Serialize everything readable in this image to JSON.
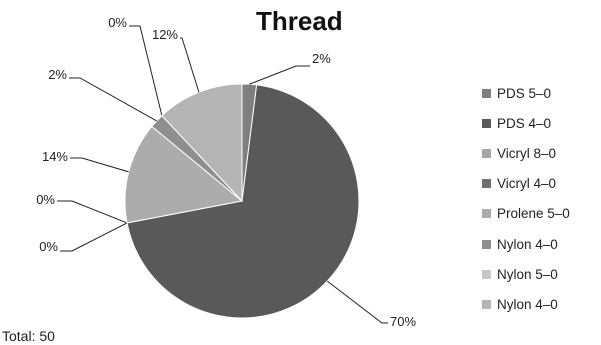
{
  "chart_data": {
    "type": "pie",
    "title": "Thread",
    "footer": "Total: 50",
    "categories": [
      "PDS 5–0",
      "PDS 4–0",
      "Vicryl 8–0",
      "Vicryl 4–0",
      "Prolene 5–0",
      "Nylon 4–0",
      "Nylon 5–0",
      "Nylon 4–0"
    ],
    "values": [
      2,
      70,
      0,
      0,
      14,
      2,
      0,
      12
    ],
    "data_labels": [
      "2%",
      "70%",
      "0%",
      "0%",
      "14%",
      "2%",
      "0%",
      "12%"
    ],
    "colors": [
      "#7f7f7f",
      "#595959",
      "#a6a6a6",
      "#6f6f6f",
      "#acacac",
      "#8f8f8f",
      "#c8c8c8",
      "#b5b5b5"
    ],
    "legend_position": "right"
  }
}
